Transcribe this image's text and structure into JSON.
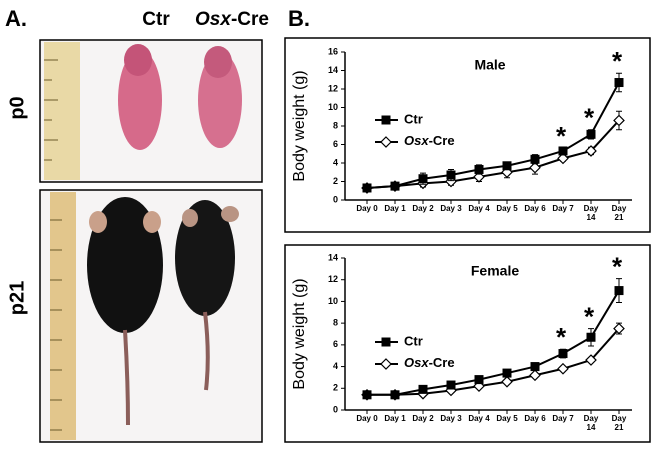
{
  "panel_a": {
    "label": "A.",
    "col_labels": [
      "Ctr",
      "Osx-Cre"
    ],
    "row_labels": [
      "p0",
      "p21"
    ]
  },
  "panel_b": {
    "label": "B."
  },
  "chart_data": [
    {
      "type": "line",
      "title": "Male",
      "y_label": "Body weight (g)",
      "categories": [
        "Day 0",
        "Day 1",
        "Day 2",
        "Day 3",
        "Day 4",
        "Day 5",
        "Day 6",
        "Day 7",
        "Day 14",
        "Day 21"
      ],
      "ylim": [
        0,
        16
      ],
      "yticks": [
        0,
        2,
        4,
        6,
        8,
        10,
        12,
        14,
        16
      ],
      "series": [
        {
          "name": "Ctr",
          "color": "#000000",
          "marker": "square",
          "marker_fill": "#000000",
          "values": [
            1.3,
            1.5,
            2.3,
            2.7,
            3.3,
            3.7,
            4.4,
            5.3,
            7.1,
            12.7
          ],
          "errors": [
            0.2,
            0.2,
            0.6,
            0.6,
            0.5,
            0.4,
            0.5,
            0.3,
            0.5,
            1.0
          ]
        },
        {
          "name": "Osx-Cre",
          "color": "#000000",
          "marker": "diamond",
          "marker_fill": "#ffffff",
          "values": [
            1.3,
            1.5,
            1.8,
            2.0,
            2.5,
            3.0,
            3.5,
            4.5,
            5.3,
            8.6
          ],
          "errors": [
            0.2,
            0.2,
            0.4,
            0.4,
            0.5,
            0.6,
            0.7,
            0.3,
            0.4,
            1.0
          ]
        }
      ],
      "annotations": [
        {
          "text": "*",
          "category": "Day 7"
        },
        {
          "text": "*",
          "category": "Day 14"
        },
        {
          "text": "*",
          "category": "Day 21"
        }
      ]
    },
    {
      "type": "line",
      "title": "Female",
      "y_label": "Body weight (g)",
      "categories": [
        "Day 0",
        "Day 1",
        "Day 2",
        "Day 3",
        "Day 4",
        "Day 5",
        "Day 6",
        "Day 7",
        "Day 14",
        "Day 21"
      ],
      "ylim": [
        0,
        14
      ],
      "yticks": [
        0,
        2,
        4,
        6,
        8,
        10,
        12,
        14
      ],
      "series": [
        {
          "name": "Ctr",
          "color": "#000000",
          "marker": "square",
          "marker_fill": "#000000",
          "values": [
            1.4,
            1.4,
            1.9,
            2.3,
            2.8,
            3.4,
            4.0,
            5.2,
            6.7,
            11.0
          ],
          "errors": [
            0.1,
            0.1,
            0.3,
            0.2,
            0.2,
            0.2,
            0.3,
            0.4,
            0.8,
            1.1
          ]
        },
        {
          "name": "Osx-Cre",
          "color": "#000000",
          "marker": "diamond",
          "marker_fill": "#ffffff",
          "values": [
            1.4,
            1.4,
            1.5,
            1.8,
            2.2,
            2.6,
            3.2,
            3.8,
            4.6,
            7.5
          ],
          "errors": [
            0.1,
            0.1,
            0.2,
            0.2,
            0.2,
            0.2,
            0.2,
            0.2,
            0.2,
            0.5
          ]
        }
      ],
      "annotations": [
        {
          "text": "*",
          "category": "Day 7"
        },
        {
          "text": "*",
          "category": "Day 14"
        },
        {
          "text": "*",
          "category": "Day 21"
        }
      ]
    }
  ]
}
